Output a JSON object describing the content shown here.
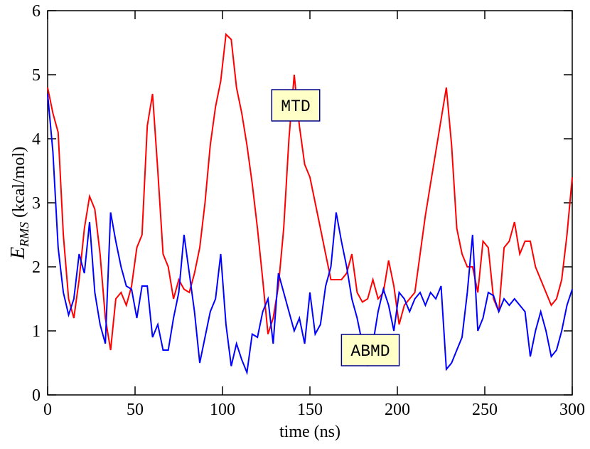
{
  "chart_data": {
    "type": "line",
    "xlabel": "time (ns)",
    "ylabel": {
      "symbol": "E",
      "subscript": "RMS",
      "unit": "(kcal/mol)"
    },
    "x": [
      0,
      3,
      6,
      9,
      12,
      15,
      18,
      21,
      24,
      27,
      30,
      33,
      36,
      39,
      42,
      45,
      48,
      51,
      54,
      57,
      60,
      63,
      66,
      69,
      72,
      75,
      78,
      81,
      84,
      87,
      90,
      93,
      96,
      99,
      102,
      105,
      108,
      111,
      114,
      117,
      120,
      123,
      126,
      129,
      132,
      135,
      138,
      141,
      144,
      147,
      150,
      153,
      156,
      159,
      162,
      165,
      168,
      171,
      174,
      177,
      180,
      183,
      186,
      189,
      192,
      195,
      198,
      201,
      204,
      207,
      210,
      213,
      216,
      219,
      222,
      225,
      228,
      231,
      234,
      237,
      240,
      243,
      246,
      249,
      252,
      255,
      258,
      261,
      264,
      267,
      270,
      273,
      276,
      279,
      282,
      285,
      288,
      291,
      294,
      297,
      300
    ],
    "series": [
      {
        "name": "MTD",
        "color": "#ff0000",
        "values": [
          4.8,
          4.4,
          4.1,
          2.5,
          1.5,
          1.2,
          1.8,
          2.6,
          3.1,
          2.9,
          2.2,
          1.2,
          0.7,
          1.5,
          1.6,
          1.4,
          1.7,
          2.3,
          2.5,
          4.2,
          4.7,
          3.5,
          2.2,
          2.0,
          1.5,
          1.8,
          1.65,
          1.6,
          1.9,
          2.3,
          3.0,
          3.9,
          4.5,
          4.9,
          5.63,
          5.55,
          4.8,
          4.4,
          3.9,
          3.3,
          2.6,
          1.8,
          0.95,
          1.2,
          1.7,
          2.6,
          4.0,
          5.0,
          4.2,
          3.6,
          3.4,
          3.0,
          2.6,
          2.2,
          1.8,
          1.8,
          1.8,
          1.9,
          2.2,
          1.6,
          1.45,
          1.5,
          1.8,
          1.5,
          1.6,
          2.1,
          1.7,
          1.1,
          1.4,
          1.5,
          1.6,
          2.2,
          2.8,
          3.3,
          3.8,
          4.3,
          4.8,
          3.9,
          2.6,
          2.2,
          2.0,
          2.0,
          1.6,
          2.4,
          2.3,
          1.5,
          1.3,
          2.3,
          2.4,
          2.7,
          2.2,
          2.4,
          2.4,
          2.0,
          1.8,
          1.6,
          1.4,
          1.5,
          1.8,
          2.5,
          3.4
        ]
      },
      {
        "name": "ABMD",
        "color": "#0000ff",
        "values": [
          4.7,
          3.8,
          2.3,
          1.6,
          1.25,
          1.5,
          2.2,
          1.9,
          2.7,
          1.6,
          1.1,
          0.8,
          2.85,
          2.4,
          2.0,
          1.7,
          1.65,
          1.2,
          1.7,
          1.7,
          0.9,
          1.1,
          0.7,
          0.7,
          1.2,
          1.6,
          2.5,
          1.9,
          1.3,
          0.5,
          0.9,
          1.3,
          1.5,
          2.2,
          1.1,
          0.45,
          0.8,
          0.55,
          0.35,
          0.95,
          0.9,
          1.3,
          1.5,
          0.8,
          1.9,
          1.6,
          1.3,
          1.0,
          1.2,
          0.8,
          1.6,
          0.95,
          1.1,
          1.7,
          2.0,
          2.85,
          2.4,
          2.0,
          1.5,
          1.2,
          0.8,
          0.45,
          0.8,
          1.3,
          1.65,
          1.4,
          1.0,
          1.6,
          1.5,
          1.3,
          1.5,
          1.6,
          1.4,
          1.6,
          1.5,
          1.7,
          0.4,
          0.5,
          0.7,
          0.9,
          1.6,
          2.5,
          1.0,
          1.2,
          1.6,
          1.55,
          1.3,
          1.5,
          1.4,
          1.5,
          1.4,
          1.3,
          0.6,
          1.0,
          1.3,
          1.0,
          0.6,
          0.7,
          1.0,
          1.4,
          1.65
        ]
      }
    ],
    "xlim": [
      0,
      300
    ],
    "xticks": [
      0,
      50,
      100,
      150,
      200,
      250,
      300
    ],
    "ylim": [
      0,
      6
    ],
    "yticks": [
      0,
      1,
      2,
      3,
      4,
      5,
      6
    ]
  }
}
